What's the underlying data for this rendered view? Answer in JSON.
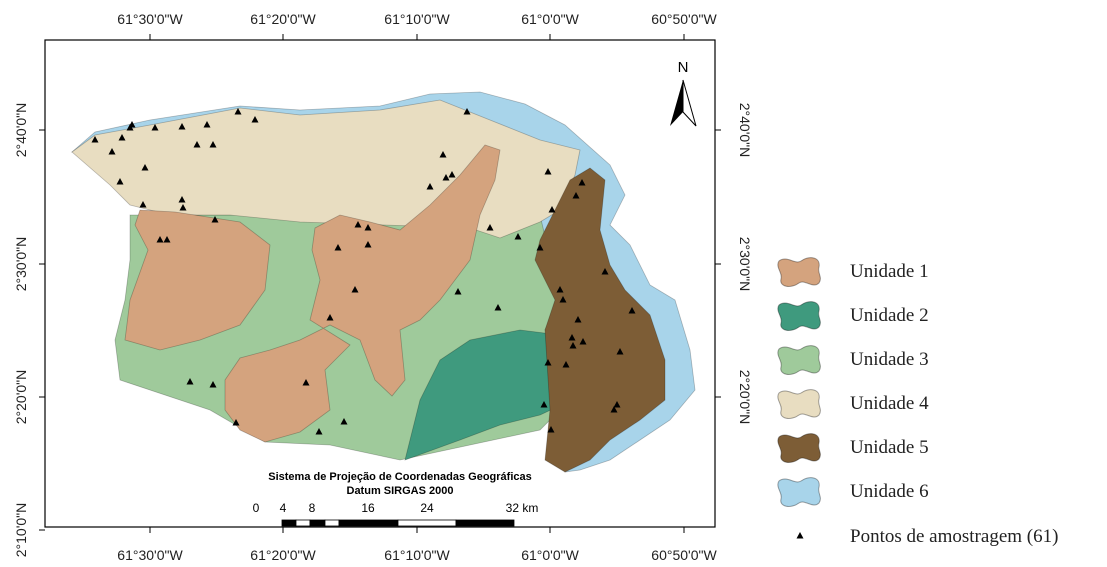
{
  "map": {
    "top_labels": [
      "61°30'0\"W",
      "61°20'0\"W",
      "61°10'0\"W",
      "61°0'0\"W",
      "60°50'0\"W"
    ],
    "bottom_labels": [
      "61°30'0\"W",
      "61°20'0\"W",
      "61°10'0\"W",
      "61°0'0\"W",
      "60°50'0\"W"
    ],
    "left_labels": [
      "2°40'0\"N",
      "2°30'0\"N",
      "2°20'0\"N",
      "2°10'0\"N"
    ],
    "right_labels": [
      "2°40'0\"N",
      "2°30'0\"N",
      "2°20'0\"N"
    ],
    "north": "N",
    "scale": {
      "title": "Sistema de Projeção de Coordenadas Geográficas",
      "datum": "Datum SIRGAS 2000",
      "labels": [
        "0",
        "4",
        "8",
        "16",
        "24",
        "32 km"
      ]
    },
    "legend": [
      {
        "label": "Unidade 1",
        "color": "#d4a37e"
      },
      {
        "label": "Unidade 2",
        "color": "#3f9a7e"
      },
      {
        "label": "Unidade 3",
        "color": "#9fca9b"
      },
      {
        "label": "Unidade 4",
        "color": "#e8ddc1"
      },
      {
        "label": "Unidade 5",
        "color": "#7d5d36"
      },
      {
        "label": "Unidade 6",
        "color": "#a8d4ea"
      }
    ],
    "points_label": "Pontos de amostragem (61)"
  }
}
